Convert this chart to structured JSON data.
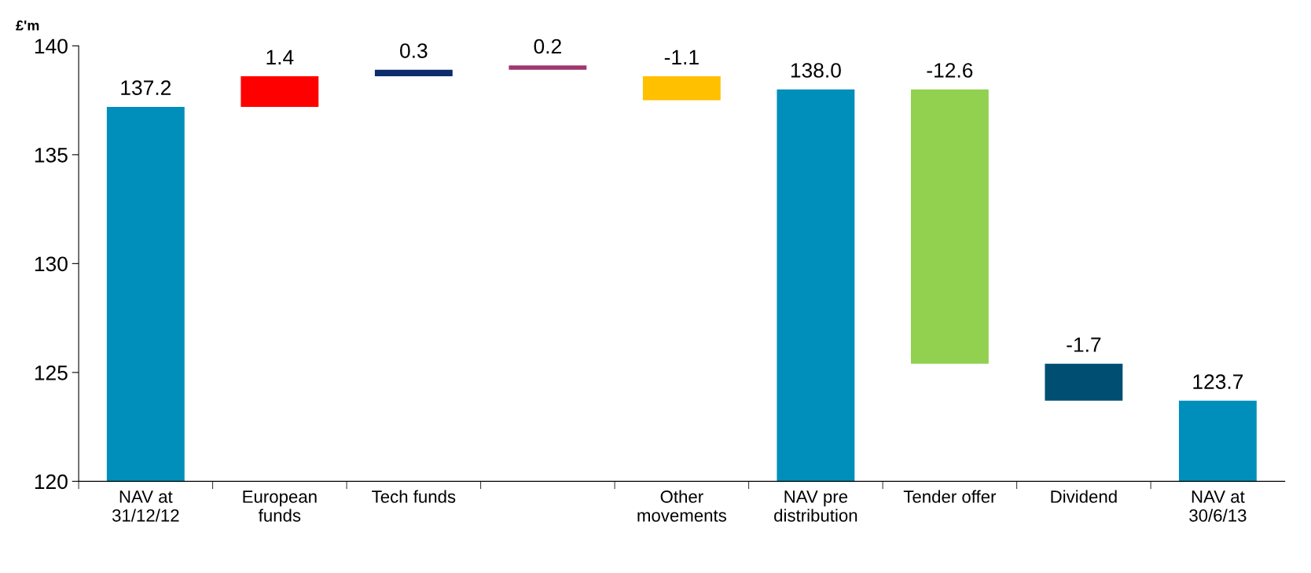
{
  "chart_data": {
    "type": "bar",
    "ylabel": "£'m",
    "categories": [
      "NAV at\n31/12/12",
      "European\nfunds",
      "Tech funds",
      null,
      "Other\nmovements",
      "NAV pre\ndistribution",
      "Tender offer",
      "Dividend",
      "NAV at\n30/6/13"
    ],
    "base": [
      120,
      137.2,
      138.6,
      138.9,
      138.6,
      120,
      138.0,
      125.4,
      120
    ],
    "values": [
      17.2,
      1.4,
      0.3,
      0.2,
      -1.1,
      18.0,
      -12.6,
      -1.7,
      3.7
    ],
    "value_labels": [
      "137.2",
      "1.4",
      "0.3",
      "0.2",
      "-1.1",
      "138.0",
      "-12.6",
      "-1.7",
      "123.7"
    ],
    "colors": [
      "#008fbb",
      "#ff0000",
      "#0d2d6c",
      "#a0366e",
      "#ffc000",
      "#008fbb",
      "#92d050",
      "#004f73",
      "#008fbb"
    ],
    "ylim": [
      120,
      140
    ],
    "yticks": [
      120,
      125,
      130,
      135,
      140
    ],
    "grid": false,
    "legend": false
  }
}
